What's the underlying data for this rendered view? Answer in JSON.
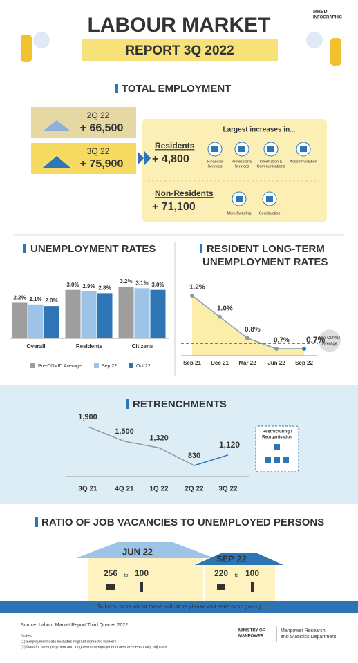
{
  "header": {
    "badge": [
      "MRSD",
      "INFOGRAPHIC"
    ],
    "title": "LABOUR MARKET",
    "subtitle": "REPORT 3Q 2022"
  },
  "employment": {
    "heading": "TOTAL EMPLOYMENT",
    "quarters": [
      {
        "label": "2Q 22",
        "change": "+ 66,500"
      },
      {
        "label": "3Q 22",
        "change": "+ 75,900"
      }
    ],
    "increases_heading": "Largest increases in...",
    "groups": [
      {
        "name": "Residents",
        "change": "+ 4,800",
        "industries": [
          [
            "Financial",
            "Services"
          ],
          [
            "Professional",
            "Services"
          ],
          [
            "Information &",
            "Communications"
          ],
          [
            "Accommodation"
          ]
        ]
      },
      {
        "name": "Non-Residents",
        "change": "+ 71,100",
        "industries": [
          [
            "Manufacturing"
          ],
          [
            "Construction"
          ]
        ]
      }
    ]
  },
  "chart_data": [
    {
      "type": "bar",
      "title": "UNEMPLOYMENT RATES",
      "categories": [
        "Overall",
        "Residents",
        "Citizens"
      ],
      "series": [
        {
          "name": "Pre-COVID Average",
          "color": "#9e9e9e",
          "values": [
            2.2,
            3.0,
            3.2
          ],
          "value_labels": [
            "2.2%",
            "3.0%",
            "3.2%"
          ]
        },
        {
          "name": "Sep 22",
          "color": "#9dc3e6",
          "values": [
            2.1,
            2.9,
            3.1
          ],
          "value_labels": [
            "2.1%",
            "2.9%",
            "3.1%"
          ]
        },
        {
          "name": "Oct 22",
          "color": "#2e75b6",
          "values": [
            2.0,
            2.8,
            3.0
          ],
          "value_labels": [
            "2.0%",
            "2.8%",
            "3.0%"
          ]
        }
      ]
    },
    {
      "type": "line",
      "title": [
        "RESIDENT LONG-TERM",
        "UNEMPLOYMENT RATES"
      ],
      "categories": [
        "Sep 21",
        "Dec 21",
        "Mar 22",
        "Jun 22",
        "Sep 22"
      ],
      "values": [
        1.2,
        1.0,
        0.8,
        0.7,
        0.7
      ],
      "value_labels": [
        "1.2%",
        "1.0%",
        "0.8%",
        "0.7%",
        "0.7%"
      ],
      "color": "#8c9aa8",
      "fill": "#fbeeaa",
      "reference": {
        "label": [
          "Pre-COVID",
          "Average"
        ],
        "value": 0.75
      }
    },
    {
      "type": "line",
      "title": "RETRENCHMENTS",
      "categories": [
        "3Q 21",
        "4Q 21",
        "1Q 22",
        "2Q 22",
        "3Q 22"
      ],
      "values": [
        1900,
        1500,
        1320,
        830,
        1120
      ],
      "value_labels": [
        "1,900",
        "1,500",
        "1,320",
        "830",
        "1,120"
      ],
      "color": "#8c9aa8",
      "annotation": [
        "Restructuring /",
        "Reorganisation"
      ]
    }
  ],
  "vacancies": {
    "heading": "RATIO OF JOB VACANCIES TO UNEMPLOYED PERSONS",
    "periods": [
      {
        "label": "JUN 22",
        "vacancies": "256",
        "joiner": "to",
        "unemployed": "100"
      },
      {
        "label": "SEP 22",
        "vacancies": "220",
        "joiner": "to",
        "unemployed": "100"
      }
    ]
  },
  "footer": {
    "link_text": "To know more about these indicators please visit stats.mom.gov.sg",
    "source": "Source: Labour Market Report Third Quarter 2022",
    "notes_heading": "Notes:",
    "notes": [
      "(1) Employment data excludes migrant domestic workers",
      "(2) Data for unemployment and long-term unemployment rates are seasonally adjusted"
    ],
    "ministry": [
      "MINISTRY OF",
      "MANPOWER"
    ],
    "department": [
      "Manpower Research",
      "and Statistics Department"
    ]
  }
}
